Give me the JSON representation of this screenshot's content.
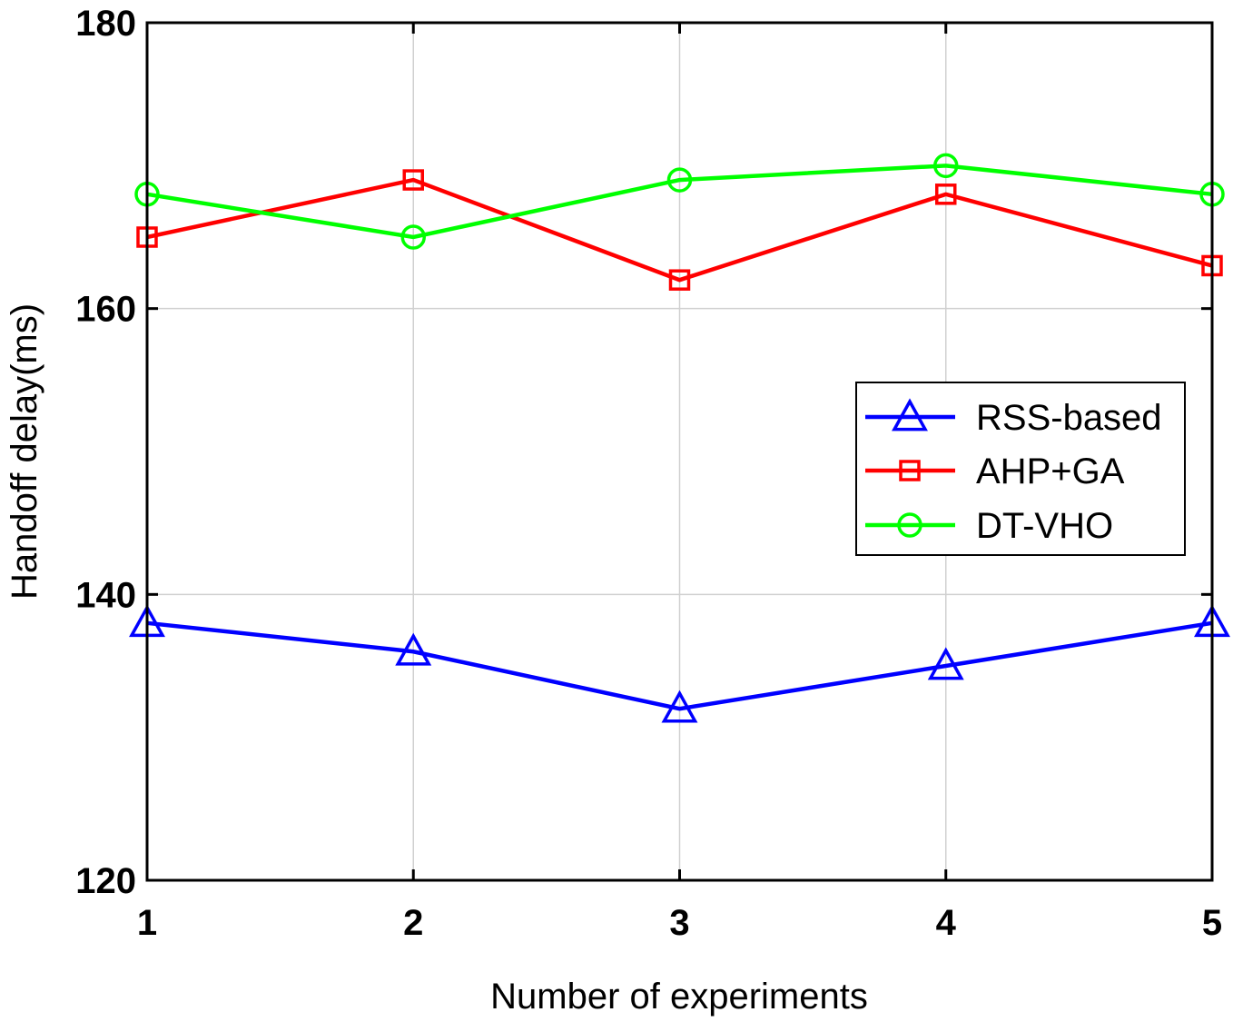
{
  "chart_data": {
    "type": "line",
    "x": [
      1,
      2,
      3,
      4,
      5
    ],
    "xlabel": "Number of experiments",
    "ylabel": "Handoff delay(ms)",
    "xlim": [
      1,
      5
    ],
    "ylim": [
      120,
      180
    ],
    "xticks": [
      "1",
      "2",
      "3",
      "4",
      "5"
    ],
    "yticks": [
      "120",
      "140",
      "160",
      "180"
    ],
    "grid": true,
    "legend_position": "right",
    "series": [
      {
        "name": "RSS-based",
        "values": [
          138,
          136,
          132,
          135,
          138
        ],
        "color": "#0000ff",
        "marker": "triangle"
      },
      {
        "name": "AHP+GA",
        "values": [
          165,
          169,
          162,
          168,
          163
        ],
        "color": "#ff0000",
        "marker": "square"
      },
      {
        "name": "DT-VHO",
        "values": [
          168,
          165,
          169,
          170,
          168
        ],
        "color": "#00ff00",
        "marker": "circle"
      }
    ]
  }
}
